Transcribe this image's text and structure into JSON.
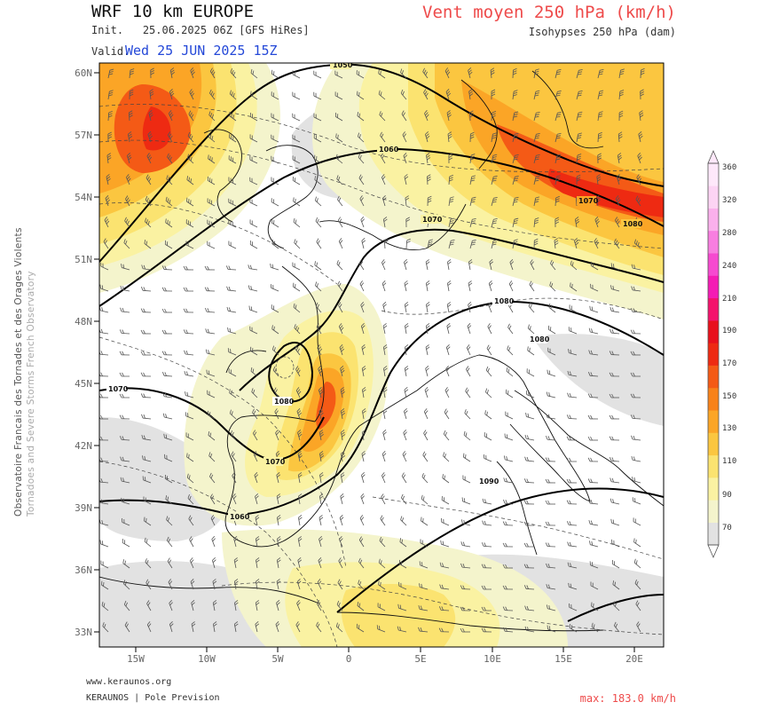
{
  "header": {
    "model": "WRF 10 km EUROPE",
    "init_label": "Init.",
    "init_value": "25.06.2025 06Z [GFS HiRes]",
    "valid_label": "Valid.",
    "valid_value": "Wed 25 JUN 2025 15Z",
    "product": "Vent moyen 250 hPa (km/h)",
    "isohypses": "Isohypses 250 hPa (dam)"
  },
  "side_text": {
    "line1": "Observatoire Francais des Tornades et des Orages Violents",
    "line2": "Tornadoes and Severe Storms French Observatory"
  },
  "footer": {
    "website": "www.keraunos.org",
    "credit": "KERAUNOS | Pole Prevision",
    "max_value": "max: 183.0 km/h"
  },
  "map": {
    "lat_labels": [
      "60N",
      "57N",
      "54N",
      "51N",
      "48N",
      "45N",
      "42N",
      "39N",
      "36N",
      "33N"
    ],
    "lon_labels": [
      "15W",
      "10W",
      "5W",
      "0",
      "5E",
      "10E",
      "15E",
      "20E"
    ],
    "isohypse_labels": [
      "1050",
      "1060",
      "1070",
      "1080",
      "1080",
      "1070",
      "1070",
      "1060",
      "1070",
      "1080",
      "1080",
      "1090"
    ]
  },
  "colorbar": {
    "labels": [
      "70",
      "90",
      "110",
      "130",
      "150",
      "170",
      "190",
      "210",
      "240",
      "280",
      "320",
      "360"
    ],
    "colors": [
      "#e2e2e2",
      "#f4f4cc",
      "#faf2a2",
      "#fbe370",
      "#fbc640",
      "#fba526",
      "#f8821a",
      "#f45a16",
      "#ee2a12",
      "#e8101c",
      "#f4126c",
      "#f41cb4",
      "#f64ad0",
      "#f87ee0",
      "#fab0ec",
      "#fcd4f4",
      "#fee8fa"
    ]
  }
}
